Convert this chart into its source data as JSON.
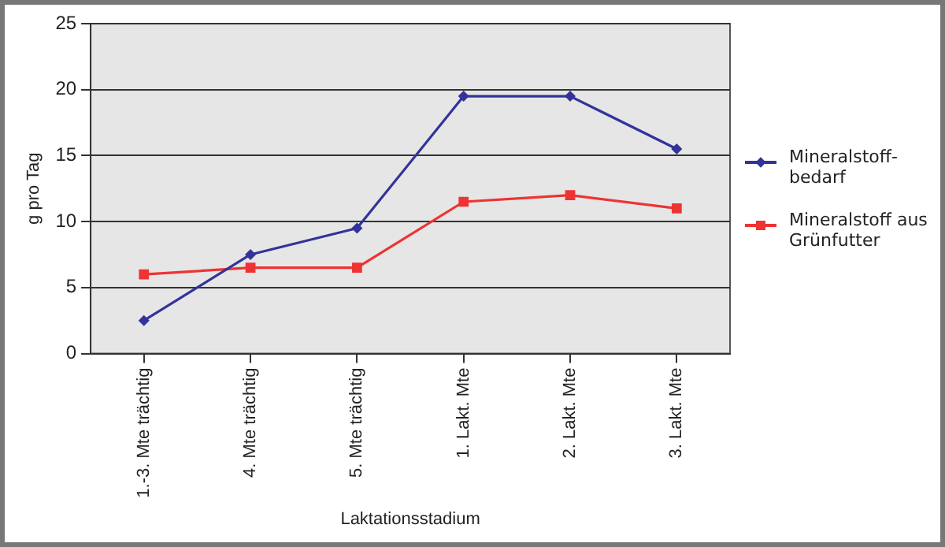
{
  "chart_data": {
    "type": "line",
    "xlabel": "Laktationsstadium",
    "ylabel": "g pro Tag",
    "categories": [
      "1.-3. Mte trächtig",
      "4. Mte trächtig",
      "5. Mte trächtig",
      "1. Lakt. Mte",
      "2. Lakt. Mte",
      "3. Lakt. Mte"
    ],
    "series": [
      {
        "name": "Mineralstoff-bedarf",
        "color": "#33339a",
        "marker": "diamond",
        "values": [
          2.5,
          7.5,
          9.5,
          19.5,
          19.5,
          15.5
        ]
      },
      {
        "name": "Mineralstoff aus Grünfutter",
        "color": "#ee3333",
        "marker": "square",
        "values": [
          6,
          6.5,
          6.5,
          11.5,
          12,
          11
        ]
      }
    ],
    "ylim": [
      0,
      25
    ],
    "yticks": [
      0,
      5,
      10,
      15,
      20,
      25
    ],
    "grid": "y",
    "legend": "right"
  }
}
